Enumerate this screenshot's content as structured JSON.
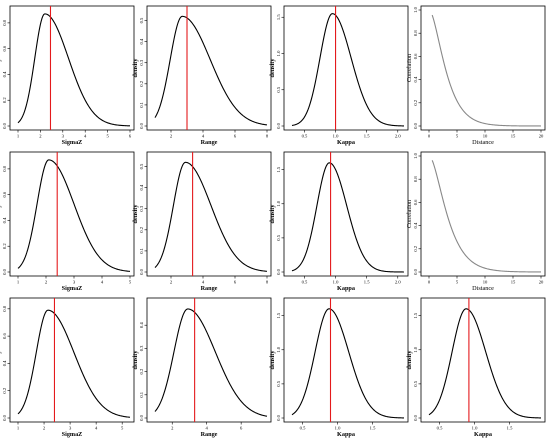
{
  "chart_data": [
    {
      "type": "line",
      "xlabel": "SigmaZ",
      "ylabel": "density",
      "xlim": [
        1,
        6
      ],
      "ylim": [
        0,
        0.9
      ],
      "xticks": [
        1,
        2,
        3,
        4,
        5,
        6
      ],
      "xtick_labels": [
        "1",
        "2",
        "3",
        "4",
        "5",
        "6"
      ],
      "yticks": [
        0,
        0.2,
        0.4,
        0.6,
        0.8
      ],
      "ytick_labels": [
        "0.0",
        "0.2",
        "0.4",
        "0.6",
        "0.8"
      ],
      "density": {
        "family": "lognormal",
        "mode": 2.2,
        "peak": 0.87,
        "left_width": 0.45,
        "right_width": 1.05
      },
      "ref_line": 2.45,
      "line_color": "#000000",
      "ref_color": "#e41a1c"
    },
    {
      "type": "line",
      "xlabel": "Range",
      "ylabel": "density",
      "xlim": [
        1,
        8
      ],
      "ylim": [
        0,
        0.55
      ],
      "xticks": [
        2,
        4,
        6,
        8
      ],
      "xtick_labels": [
        "2",
        "4",
        "6",
        "8"
      ],
      "yticks": [
        0,
        0.1,
        0.2,
        0.3,
        0.4,
        0.5
      ],
      "ytick_labels": [
        "0.0",
        "0.1",
        "0.2",
        "0.3",
        "0.4",
        "0.5"
      ],
      "density": {
        "family": "lognormal",
        "mode": 2.7,
        "peak": 0.52,
        "left_width": 0.75,
        "right_width": 1.75
      },
      "ref_line": 3.0,
      "line_color": "#000000",
      "ref_color": "#e41a1c"
    },
    {
      "type": "line",
      "xlabel": "Kappa",
      "ylabel": "density",
      "xlim": [
        0.3,
        2.1
      ],
      "ylim": [
        0,
        1.6
      ],
      "xticks": [
        0.5,
        1.0,
        1.5,
        2.0
      ],
      "xtick_labels": [
        "0.5",
        "1.0",
        "1.5",
        "2.0"
      ],
      "yticks": [
        0,
        0.5,
        1.0,
        1.5
      ],
      "ytick_labels": [
        "0.0",
        "0.5",
        "1.0",
        "1.5"
      ],
      "density": {
        "family": "lognormal",
        "mode": 0.95,
        "peak": 1.55,
        "left_width": 0.2,
        "right_width": 0.3
      },
      "ref_line": 1.0,
      "line_color": "#000000",
      "ref_color": "#e41a1c"
    },
    {
      "type": "line",
      "xlabel": "Distance",
      "ylabel": "Correlation",
      "xlim": [
        0,
        20
      ],
      "ylim": [
        0,
        1
      ],
      "xticks": [
        0,
        5,
        10,
        15,
        20
      ],
      "xtick_labels": [
        "0",
        "5",
        "10",
        "15",
        "20"
      ],
      "yticks": [
        0,
        0.2,
        0.4,
        0.6,
        0.8,
        1.0
      ],
      "ytick_labels": [
        "0.0",
        "0.2",
        "0.4",
        "0.6",
        "0.8",
        "1.0"
      ],
      "correlation": {
        "family": "matern",
        "range": 3.0
      },
      "line_color": "#888888"
    },
    {
      "type": "line",
      "xlabel": "SigmaZ",
      "ylabel": "density",
      "xlim": [
        1,
        5
      ],
      "ylim": [
        0,
        0.9
      ],
      "xticks": [
        1,
        2,
        3,
        4,
        5
      ],
      "xtick_labels": [
        "1",
        "2",
        "3",
        "4",
        "5"
      ],
      "yticks": [
        0,
        0.2,
        0.4,
        0.6,
        0.8
      ],
      "ytick_labels": [
        "0.0",
        "0.2",
        "0.4",
        "0.6",
        "0.8"
      ],
      "density": {
        "family": "lognormal",
        "mode": 2.1,
        "peak": 0.87,
        "left_width": 0.42,
        "right_width": 0.9
      },
      "ref_line": 2.4,
      "line_color": "#000000",
      "ref_color": "#e41a1c"
    },
    {
      "type": "line",
      "xlabel": "Range",
      "ylabel": "density",
      "xlim": [
        1,
        8
      ],
      "ylim": [
        0,
        0.55
      ],
      "xticks": [
        2,
        4,
        6,
        8
      ],
      "xtick_labels": [
        "2",
        "4",
        "6",
        "8"
      ],
      "yticks": [
        0,
        0.1,
        0.2,
        0.3,
        0.4,
        0.5
      ],
      "ytick_labels": [
        "0.0",
        "0.1",
        "0.2",
        "0.3",
        "0.4",
        "0.5"
      ],
      "density": {
        "family": "lognormal",
        "mode": 2.9,
        "peak": 0.52,
        "left_width": 0.75,
        "right_width": 1.6
      },
      "ref_line": 3.35,
      "line_color": "#000000",
      "ref_color": "#e41a1c"
    },
    {
      "type": "line",
      "xlabel": "Kappa",
      "ylabel": "density",
      "xlim": [
        0.3,
        2.1
      ],
      "ylim": [
        0,
        1.7
      ],
      "xticks": [
        0.5,
        1.0,
        1.5,
        2.0
      ],
      "xtick_labels": [
        "0.5",
        "1.0",
        "1.5",
        "2.0"
      ],
      "yticks": [
        0,
        0.5,
        1.0,
        1.5
      ],
      "ytick_labels": [
        "0.0",
        "0.5",
        "1.0",
        "1.5"
      ],
      "density": {
        "family": "lognormal",
        "mode": 0.9,
        "peak": 1.6,
        "left_width": 0.2,
        "right_width": 0.28
      },
      "ref_line": 0.92,
      "line_color": "#000000",
      "ref_color": "#e41a1c"
    },
    {
      "type": "line",
      "xlabel": "Distance",
      "ylabel": "Correlation",
      "xlim": [
        0,
        20
      ],
      "ylim": [
        0,
        1
      ],
      "xticks": [
        0,
        5,
        10,
        15,
        20
      ],
      "xtick_labels": [
        "0",
        "5",
        "10",
        "15",
        "20"
      ],
      "yticks": [
        0,
        0.2,
        0.4,
        0.6,
        0.8,
        1.0
      ],
      "ytick_labels": [
        "0.0",
        "0.2",
        "0.4",
        "0.6",
        "0.8",
        "1.0"
      ],
      "correlation": {
        "family": "matern",
        "range": 3.3
      },
      "line_color": "#888888"
    },
    {
      "type": "line",
      "xlabel": "SigmaZ",
      "ylabel": "density",
      "xlim": [
        1,
        5.3
      ],
      "ylim": [
        0,
        0.85
      ],
      "xticks": [
        1,
        2,
        3,
        4,
        5
      ],
      "xtick_labels": [
        "1",
        "2",
        "3",
        "4",
        "5"
      ],
      "yticks": [
        0,
        0.2,
        0.4,
        0.6,
        0.8
      ],
      "ytick_labels": [
        "0.0",
        "0.2",
        "0.4",
        "0.6",
        "0.8"
      ],
      "density": {
        "family": "lognormal",
        "mode": 2.15,
        "peak": 0.79,
        "left_width": 0.45,
        "right_width": 1.0
      },
      "ref_line": 2.4,
      "line_color": "#000000",
      "ref_color": "#e41a1c"
    },
    {
      "type": "line",
      "xlabel": "Range",
      "ylabel": "density",
      "xlim": [
        1,
        7.5
      ],
      "ylim": [
        0,
        0.5
      ],
      "xticks": [
        2,
        4,
        6
      ],
      "xtick_labels": [
        "2",
        "4",
        "6"
      ],
      "yticks": [
        0,
        0.1,
        0.2,
        0.3,
        0.4
      ],
      "ytick_labels": [
        "0.0",
        "0.1",
        "0.2",
        "0.3",
        "0.4"
      ],
      "density": {
        "family": "lognormal",
        "mode": 2.9,
        "peak": 0.47,
        "left_width": 0.8,
        "right_width": 1.6
      },
      "ref_line": 3.3,
      "line_color": "#000000",
      "ref_color": "#e41a1c"
    },
    {
      "type": "line",
      "xlabel": "Kappa",
      "ylabel": "density",
      "xlim": [
        0.35,
        1.95
      ],
      "ylim": [
        0,
        1.7
      ],
      "xticks": [
        0.5,
        1.0,
        1.5
      ],
      "xtick_labels": [
        "0.5",
        "1.0",
        "1.5"
      ],
      "yticks": [
        0,
        0.5,
        1.0,
        1.5
      ],
      "ytick_labels": [
        "0.0",
        "0.5",
        "1.0",
        "1.5"
      ],
      "density": {
        "family": "lognormal",
        "mode": 0.88,
        "peak": 1.6,
        "left_width": 0.2,
        "right_width": 0.28
      },
      "ref_line": 0.9,
      "line_color": "#000000",
      "ref_color": "#e41a1c"
    },
    {
      "type": "line",
      "xlabel": "Kappa",
      "ylabel": "density",
      "xlim": [
        0.35,
        1.95
      ],
      "ylim": [
        0,
        1.7
      ],
      "xticks": [
        0.5,
        1.0,
        1.5
      ],
      "xtick_labels": [
        "0.5",
        "1.0",
        "1.5"
      ],
      "yticks": [
        0,
        0.5,
        1.0,
        1.5
      ],
      "ytick_labels": [
        "0.0",
        "0.5",
        "1.0",
        "1.5"
      ],
      "density": {
        "family": "lognormal",
        "mode": 0.88,
        "peak": 1.6,
        "left_width": 0.2,
        "right_width": 0.28
      },
      "ref_line": 0.92,
      "line_color": "#000000",
      "ref_color": "#e41a1c"
    }
  ]
}
